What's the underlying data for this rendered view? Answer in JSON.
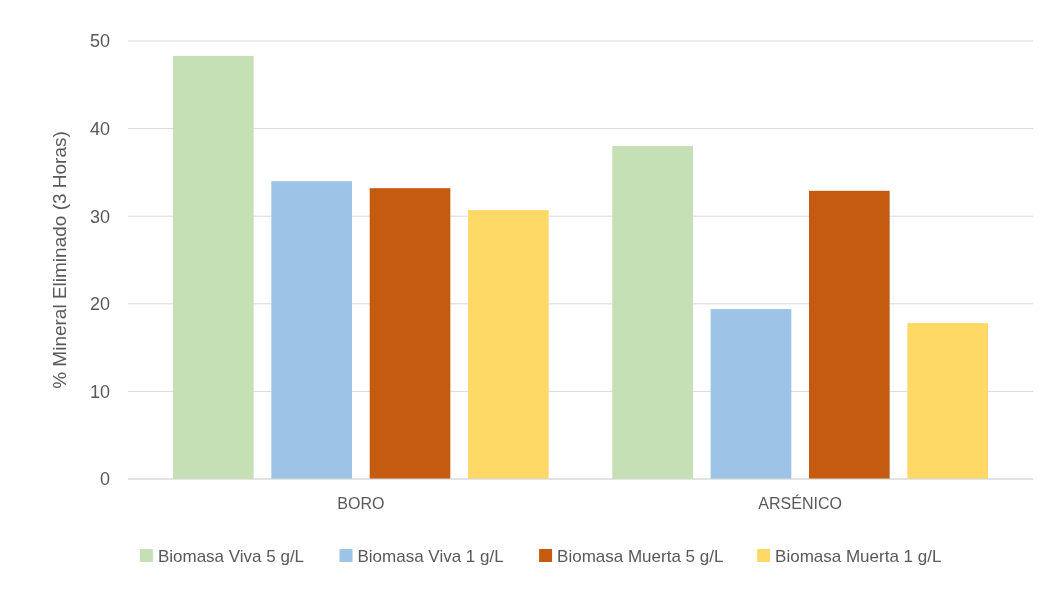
{
  "chart_data": {
    "type": "bar",
    "ylabel": "% Mineral Eliminado (3 Horas)",
    "categories": [
      "BORO",
      "ARSÉNICO"
    ],
    "series": [
      {
        "name": "Biomasa Viva 5 g/L",
        "color": "#c5e0b4",
        "values": [
          48.3,
          38.0
        ]
      },
      {
        "name": "Biomasa Viva 1 g/L",
        "color": "#9dc3e6",
        "values": [
          34.0,
          19.4
        ]
      },
      {
        "name": "Biomasa Muerta 5 g/L",
        "color": "#c55a11",
        "values": [
          33.2,
          32.9
        ]
      },
      {
        "name": "Biomasa Muerta 1 g/L",
        "color": "#ffd966",
        "values": [
          30.7,
          17.8
        ]
      }
    ],
    "ylim": [
      0,
      50
    ],
    "yticks": [
      0,
      10,
      20,
      30,
      40,
      50
    ],
    "grid": "y",
    "legend": "bottom"
  }
}
